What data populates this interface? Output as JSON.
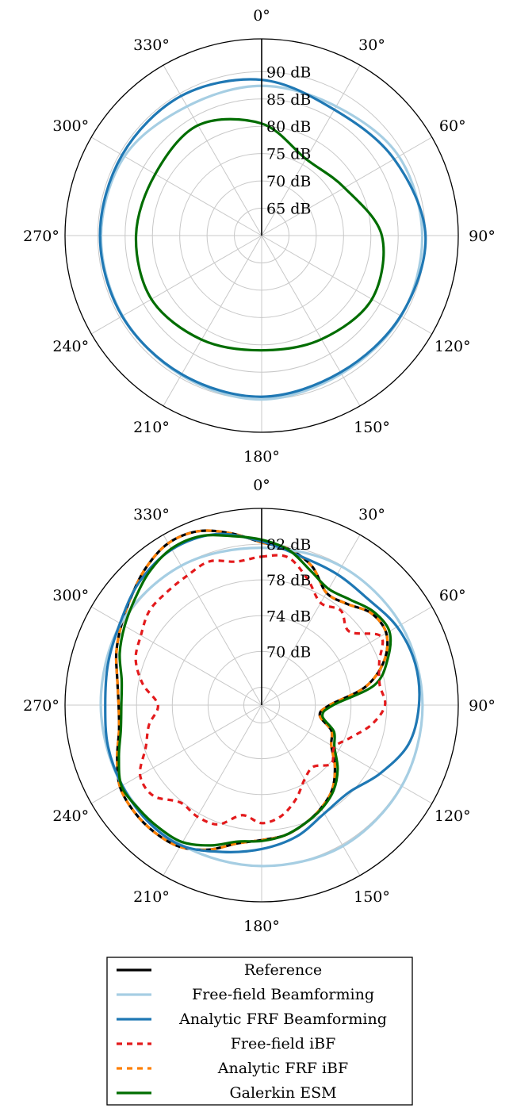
{
  "colors": {
    "reference": "#000000",
    "free_field_bf": "#a6cee3",
    "analytic_bf": "#1f78b4",
    "free_field_ibf": "#e31a1c",
    "analytic_ibf": "#ff7f00",
    "galerkin": "#006d00",
    "grid": "#c8c8c8"
  },
  "legend": {
    "placement": "bottom-center",
    "entries": [
      {
        "key": "reference",
        "label": "Reference",
        "dashed": false
      },
      {
        "key": "free_field_bf",
        "label": "Free-field Beamforming",
        "dashed": false
      },
      {
        "key": "analytic_bf",
        "label": "Analytic FRF Beamforming",
        "dashed": false
      },
      {
        "key": "free_field_ibf",
        "label": "Free-field iBF",
        "dashed": true
      },
      {
        "key": "analytic_ibf",
        "label": "Analytic FRF iBF",
        "dashed": true
      },
      {
        "key": "galerkin",
        "label": "Galerkin ESM",
        "dashed": false
      }
    ]
  },
  "chart_data": [
    {
      "type": "polar",
      "angular_ticks": [
        "0°",
        "30°",
        "60°",
        "90°",
        "120°",
        "150°",
        "180°",
        "210°",
        "240°",
        "270°",
        "300°",
        "330°"
      ],
      "direction": "clockwise",
      "zero_at": "top",
      "radial_range": [
        60,
        96
      ],
      "radial_ticks": [
        65,
        70,
        75,
        80,
        85,
        90
      ],
      "radial_tick_labels": [
        "65 dB",
        "70 dB",
        "75 dB",
        "80 dB",
        "85 dB",
        "90 dB"
      ],
      "radial_label_angle_deg": 0,
      "grid": true,
      "series": [
        {
          "key": "free_field_bf",
          "name": "Free-field Beamforming",
          "dashed": false,
          "theta": [
            0,
            30,
            60,
            90,
            120,
            150,
            180,
            210,
            240,
            270,
            300,
            330
          ],
          "r": [
            87.4,
            87.3,
            89.0,
            89.4,
            89.5,
            89.2,
            90.0,
            89.5,
            89.4,
            89.4,
            89.0,
            87.3
          ]
        },
        {
          "key": "analytic_bf",
          "name": "Analytic FRF Beamforming",
          "dashed": false,
          "theta": [
            0,
            30,
            60,
            90,
            120,
            150,
            180,
            210,
            240,
            270,
            300,
            330
          ],
          "r": [
            88.5,
            86.6,
            88.0,
            90.0,
            89.4,
            88.9,
            89.5,
            89.3,
            89.5,
            89.6,
            89.5,
            89.5
          ]
        },
        {
          "key": "galerkin",
          "name": "Galerkin ESM",
          "dashed": false,
          "theta": [
            0,
            30,
            60,
            90,
            120,
            150,
            180,
            210,
            240,
            270,
            300,
            330
          ],
          "r": [
            80.5,
            76.2,
            77.5,
            82.0,
            83.3,
            81.9,
            81.0,
            82.0,
            83.3,
            83.0,
            82.5,
            83.3
          ]
        }
      ]
    },
    {
      "type": "polar",
      "angular_ticks": [
        "0°",
        "30°",
        "60°",
        "90°",
        "120°",
        "150°",
        "180°",
        "210°",
        "240°",
        "270°",
        "300°",
        "330°"
      ],
      "direction": "clockwise",
      "zero_at": "top",
      "radial_range": [
        64,
        86
      ],
      "radial_ticks": [
        66,
        70,
        74,
        78,
        82
      ],
      "radial_tick_labels": [
        "",
        "70 dB",
        "74 dB",
        "78 dB",
        "82 dB"
      ],
      "radial_label_angle_deg": 0,
      "grid": true,
      "series": [
        {
          "key": "reference",
          "name": "Reference",
          "dashed": false,
          "theta": [
            0,
            10,
            20,
            30,
            40,
            50,
            60,
            70,
            80,
            90,
            100,
            110,
            120,
            130,
            140,
            150,
            160,
            170,
            180,
            190,
            200,
            210,
            220,
            230,
            240,
            250,
            260,
            270,
            280,
            290,
            300,
            310,
            320,
            330,
            340,
            350
          ],
          "r": [
            82.2,
            81.7,
            80.5,
            78.5,
            78.8,
            80.0,
            80.1,
            78.6,
            75.8,
            71.6,
            70.6,
            72.3,
            73.0,
            74.7,
            76.3,
            77.3,
            78.1,
            78.8,
            79.1,
            79.7,
            81.2,
            82.3,
            82.6,
            82.6,
            82.3,
            81.2,
            80.2,
            80.0,
            80.4,
            81.3,
            82.1,
            83.0,
            84.1,
            84.9,
            84.7,
            83.5
          ]
        },
        {
          "key": "analytic_ibf",
          "name": "Analytic FRF iBF",
          "dashed": true,
          "theta": [
            0,
            10,
            20,
            30,
            40,
            50,
            60,
            70,
            80,
            90,
            100,
            110,
            120,
            130,
            140,
            150,
            160,
            170,
            180,
            190,
            200,
            210,
            220,
            230,
            240,
            250,
            260,
            270,
            280,
            290,
            300,
            310,
            320,
            330,
            340,
            350
          ],
          "r": [
            82.2,
            81.7,
            80.5,
            78.5,
            78.8,
            80.0,
            80.1,
            78.6,
            75.8,
            71.6,
            70.6,
            72.3,
            73.0,
            74.7,
            76.3,
            77.3,
            78.1,
            78.8,
            79.1,
            79.7,
            81.2,
            82.3,
            82.6,
            82.6,
            82.3,
            81.2,
            80.2,
            80.0,
            80.4,
            81.3,
            82.1,
            83.0,
            84.1,
            84.9,
            84.7,
            83.5
          ]
        },
        {
          "key": "free_field_bf",
          "name": "Free-field Beamforming",
          "dashed": false,
          "theta": [
            0,
            30,
            60,
            90,
            120,
            150,
            180,
            210,
            240,
            270,
            300,
            330
          ],
          "r": [
            81.6,
            81.9,
            82.0,
            82.0,
            82.1,
            82.2,
            82.0,
            82.0,
            82.0,
            82.0,
            82.2,
            82.0
          ]
        },
        {
          "key": "analytic_bf",
          "name": "Analytic FRF Beamforming",
          "dashed": false,
          "theta": [
            0,
            15,
            30,
            45,
            60,
            75,
            90,
            105,
            120,
            135,
            150,
            165,
            180,
            195,
            210,
            225,
            240,
            255,
            270,
            285,
            300,
            315,
            330,
            345
          ],
          "r": [
            82.3,
            81.2,
            80.9,
            80.8,
            81.5,
            81.8,
            81.6,
            81.0,
            79.3,
            77.8,
            78.0,
            79.2,
            80.1,
            81.0,
            82.1,
            82.2,
            82.0,
            81.8,
            81.5,
            81.8,
            82.3,
            83.4,
            84.1,
            83.8
          ]
        },
        {
          "key": "galerkin",
          "name": "Galerkin ESM",
          "dashed": false,
          "theta": [
            0,
            10,
            20,
            30,
            40,
            50,
            60,
            70,
            80,
            90,
            100,
            110,
            120,
            130,
            140,
            150,
            160,
            170,
            180,
            190,
            200,
            210,
            220,
            230,
            240,
            250,
            260,
            270,
            280,
            290,
            300,
            310,
            320,
            330,
            340,
            350
          ],
          "r": [
            82.5,
            81.6,
            80.0,
            79.0,
            79.4,
            80.3,
            80.5,
            79.0,
            76.8,
            72.0,
            70.9,
            72.6,
            73.4,
            75.1,
            76.5,
            77.4,
            78.1,
            78.8,
            79.2,
            79.5,
            80.7,
            81.7,
            81.9,
            82.0,
            82.1,
            81.0,
            80.0,
            79.7,
            79.9,
            80.9,
            81.7,
            82.5,
            83.5,
            84.2,
            84.1,
            83.2
          ]
        },
        {
          "key": "free_field_ibf",
          "name": "Free-field iBF",
          "dashed": true,
          "theta": [
            0,
            10,
            20,
            30,
            40,
            50,
            60,
            70,
            80,
            90,
            100,
            110,
            120,
            130,
            140,
            150,
            160,
            170,
            180,
            190,
            200,
            210,
            220,
            230,
            240,
            250,
            260,
            270,
            280,
            290,
            300,
            310,
            320,
            330,
            340,
            350
          ],
          "r": [
            80.6,
            80.8,
            79.0,
            77.2,
            77.8,
            76.8,
            79.4,
            78.0,
            77.4,
            77.8,
            76.5,
            74.6,
            73.4,
            74.2,
            73.0,
            73.6,
            75.2,
            76.6,
            77.2,
            76.5,
            78.2,
            78.4,
            78.2,
            79.8,
            79.7,
            77.8,
            76.8,
            75.6,
            77.5,
            79.0,
            79.6,
            80.4,
            80.5,
            80.7,
            81.1,
            80.3
          ]
        }
      ]
    }
  ]
}
